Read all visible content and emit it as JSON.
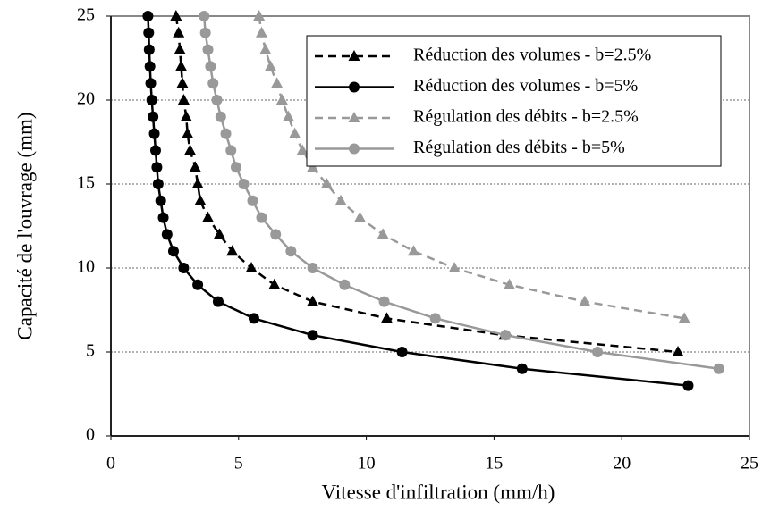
{
  "chart_data": {
    "type": "line",
    "xlabel": "Vitesse d'infiltration (mm/h)",
    "ylabel": "Capacité de l'ouvrage (mm)",
    "xlim": [
      0,
      25
    ],
    "xticks": [
      0,
      5,
      10,
      15,
      20,
      25
    ],
    "ylim": [
      0,
      25
    ],
    "yticks": [
      0,
      5,
      10,
      15,
      20,
      25
    ],
    "grid": true,
    "legend": "upper right",
    "series": [
      {
        "name": "Réduction des volumes - b=2.5%",
        "color": "#000000",
        "marker": "triangle",
        "dash": true,
        "x": [
          2.55,
          2.65,
          2.7,
          2.75,
          2.8,
          2.85,
          2.95,
          3.0,
          3.1,
          3.3,
          3.4,
          3.5,
          3.8,
          4.25,
          4.75,
          5.5,
          6.4,
          7.9,
          10.8,
          15.4,
          22.2
        ],
        "values": [
          25,
          24,
          23,
          22,
          21,
          20,
          19,
          18,
          17,
          16,
          15,
          14,
          13,
          12,
          11,
          10,
          9,
          8,
          7,
          6,
          5
        ]
      },
      {
        "name": "Réduction des volumes - b=5%",
        "color": "#000000",
        "marker": "circle",
        "dash": false,
        "x": [
          1.45,
          1.48,
          1.5,
          1.53,
          1.56,
          1.6,
          1.65,
          1.7,
          1.75,
          1.8,
          1.85,
          1.95,
          2.05,
          2.2,
          2.45,
          2.85,
          3.4,
          4.2,
          5.6,
          7.9,
          11.4,
          16.1,
          22.6
        ],
        "values": [
          25,
          24,
          23,
          22,
          21,
          20,
          19,
          18,
          17,
          16,
          15,
          14,
          13,
          12,
          11,
          10,
          9,
          8,
          7,
          6,
          5,
          4,
          3
        ]
      },
      {
        "name": "Régulation des débits - b=2.5%",
        "color": "#999999",
        "marker": "triangle",
        "dash": true,
        "x": [
          5.8,
          5.9,
          6.05,
          6.25,
          6.5,
          6.7,
          6.95,
          7.2,
          7.5,
          7.9,
          8.45,
          9.0,
          9.75,
          10.65,
          11.85,
          13.45,
          15.6,
          18.55,
          22.45
        ],
        "values": [
          25,
          24,
          23,
          22,
          21,
          20,
          19,
          18,
          17,
          16,
          15,
          14,
          13,
          12,
          11,
          10,
          9,
          8,
          7
        ]
      },
      {
        "name": "Régulation des débits - b=5%",
        "color": "#999999",
        "marker": "circle",
        "dash": false,
        "x": [
          3.65,
          3.7,
          3.8,
          3.9,
          4.0,
          4.15,
          4.3,
          4.5,
          4.7,
          4.9,
          5.2,
          5.55,
          5.9,
          6.45,
          7.05,
          7.9,
          9.15,
          10.7,
          12.7,
          15.45,
          19.05,
          23.8
        ],
        "values": [
          25,
          24,
          23,
          22,
          21,
          20,
          19,
          18,
          17,
          16,
          15,
          14,
          13,
          12,
          11,
          10,
          9,
          8,
          7,
          6,
          5,
          4
        ]
      }
    ]
  }
}
